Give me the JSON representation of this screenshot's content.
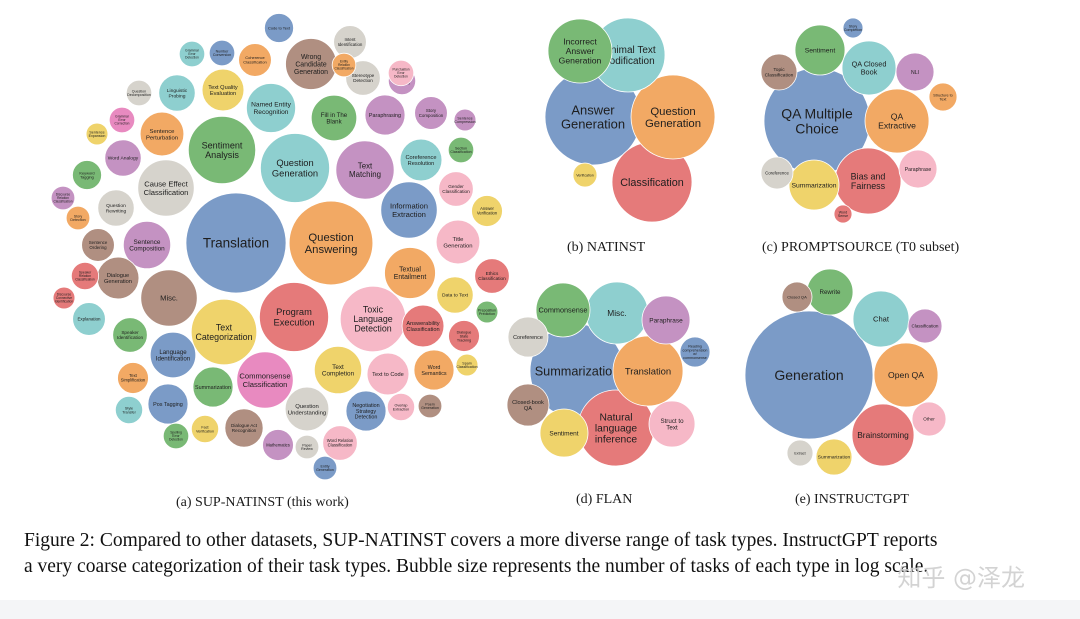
{
  "chart_data": [
    {
      "type": "bubble",
      "caption": "(a) SUP-NATINST (this work)",
      "bubbles": [
        {
          "label": "Translation",
          "size": 110,
          "color": "#7b9bc7"
        },
        {
          "label": "Question Answering",
          "size": 92,
          "color": "#f2a964"
        },
        {
          "label": "Program Execution",
          "size": 76,
          "color": "#e57a7a"
        },
        {
          "label": "Question Generation",
          "size": 76,
          "color": "#8ecfcf"
        },
        {
          "label": "Sentiment Analysis",
          "size": 74,
          "color": "#79b975"
        },
        {
          "label": "Text Categorization",
          "size": 72,
          "color": "#efd36b"
        },
        {
          "label": "Toxic Language Detection",
          "size": 72,
          "color": "#f6b8c7"
        },
        {
          "label": "Misc.",
          "size": 62,
          "color": "#b08f81"
        },
        {
          "label": "Cause Effect Classification",
          "size": 62,
          "color": "#d6d3cc"
        },
        {
          "label": "Commonsense Classification",
          "size": 62,
          "color": "#e88ac0"
        },
        {
          "label": "Text Matching",
          "size": 64,
          "color": "#c492c2"
        },
        {
          "label": "Information Extraction",
          "size": 62,
          "color": "#7b9bc7"
        },
        {
          "label": "Textual Entailment",
          "size": 56,
          "color": "#f2a964"
        },
        {
          "label": "Wrong Candidate Generation",
          "size": 56,
          "color": "#b08f81"
        },
        {
          "label": "Named Entity Recognition",
          "size": 54,
          "color": "#8ecfcf"
        },
        {
          "label": "Sentence Composition",
          "size": 52,
          "color": "#c492c2"
        },
        {
          "label": "Text Completion",
          "size": 52,
          "color": "#efd36b"
        },
        {
          "label": "Language Identification",
          "size": 50,
          "color": "#7b9bc7"
        },
        {
          "label": "Fill in The Blank",
          "size": 50,
          "color": "#79b975"
        },
        {
          "label": "Text Quality Evaluation",
          "size": 46,
          "color": "#efd36b"
        },
        {
          "label": "Dialogue Generation",
          "size": 46,
          "color": "#b08f81"
        },
        {
          "label": "Coreference Resolution",
          "size": 46,
          "color": "#8ecfcf"
        },
        {
          "label": "Sentence Perturbation",
          "size": 48,
          "color": "#f2a964"
        },
        {
          "label": "Question Understanding",
          "size": 48,
          "color": "#d6d3cc"
        },
        {
          "label": "Summarization",
          "size": 44,
          "color": "#79b975"
        },
        {
          "label": "Paraphrasing",
          "size": 44,
          "color": "#c492c2"
        },
        {
          "label": "Title Generation",
          "size": 48,
          "color": "#f6b8c7"
        },
        {
          "label": "Text to Code",
          "size": 46,
          "color": "#f6b8c7"
        },
        {
          "label": "Word Semantics",
          "size": 44,
          "color": "#f2a964"
        },
        {
          "label": "Answerability Classification",
          "size": 46,
          "color": "#e57a7a"
        },
        {
          "label": "Pos Tagging",
          "size": 44,
          "color": "#7b9bc7"
        },
        {
          "label": "Dialogue Act Recognition",
          "size": 42,
          "color": "#b08f81"
        },
        {
          "label": "Negotiation Strategy Detection",
          "size": 44,
          "color": "#7b9bc7"
        },
        {
          "label": "Linguistic Probing",
          "size": 40,
          "color": "#8ecfcf"
        },
        {
          "label": "Question Rewriting",
          "size": 40,
          "color": "#d6d3cc"
        },
        {
          "label": "Word Analogy",
          "size": 40,
          "color": "#c492c2"
        },
        {
          "label": "Stereotype Detection",
          "size": 38,
          "color": "#d6d3cc"
        },
        {
          "label": "Speaker Identification",
          "size": 38,
          "color": "#79b975"
        },
        {
          "label": "Data to Text",
          "size": 40,
          "color": "#efd36b"
        },
        {
          "label": "Word Relation Classification",
          "size": 38,
          "color": "#f6b8c7"
        },
        {
          "label": "Ethics Classification",
          "size": 38,
          "color": "#e57a7a"
        },
        {
          "label": "Dialogue State Tracking",
          "size": 34,
          "color": "#e57a7a"
        },
        {
          "label": "Story Composition",
          "size": 36,
          "color": "#c492c2"
        },
        {
          "label": "Gender Classification",
          "size": 38,
          "color": "#f6b8c7"
        },
        {
          "label": "Coherence Classification",
          "size": 36,
          "color": "#f2a964"
        },
        {
          "label": "Intent Identification",
          "size": 36,
          "color": "#d6d3cc"
        },
        {
          "label": "Explanation",
          "size": 36,
          "color": "#8ecfcf"
        },
        {
          "label": "Sentence Ordering",
          "size": 36,
          "color": "#b08f81"
        },
        {
          "label": "Answer Verification",
          "size": 34,
          "color": "#efd36b"
        },
        {
          "label": "Mathematics",
          "size": 34,
          "color": "#c492c2"
        },
        {
          "label": "Text Simplification",
          "size": 34,
          "color": "#f2a964"
        },
        {
          "label": "Code to Text",
          "size": 32,
          "color": "#7b9bc7"
        },
        {
          "label": "Keyword Tagging",
          "size": 32,
          "color": "#79b975"
        },
        {
          "label": "Stance Detection",
          "size": 30,
          "color": "#c492c2"
        },
        {
          "label": "Fact Verification",
          "size": 30,
          "color": "#efd36b"
        },
        {
          "label": "Overlap Extraction",
          "size": 30,
          "color": "#f6b8c7"
        },
        {
          "label": "Speaker Relation Classification",
          "size": 30,
          "color": "#e57a7a"
        },
        {
          "label": "Style Transfer",
          "size": 30,
          "color": "#8ecfcf"
        },
        {
          "label": "Grammar Error Correction",
          "size": 28,
          "color": "#e88ac0"
        },
        {
          "label": "Number Conversion",
          "size": 28,
          "color": "#7b9bc7"
        },
        {
          "label": "Grammar Error Detection",
          "size": 28,
          "color": "#8ecfcf"
        },
        {
          "label": "Question Decomposition",
          "size": 28,
          "color": "#d6d3cc"
        },
        {
          "label": "Punctuation Error Detection",
          "size": 28,
          "color": "#f6b8c7"
        },
        {
          "label": "Section Classification",
          "size": 28,
          "color": "#79b975"
        },
        {
          "label": "Spelling Error Detection",
          "size": 28,
          "color": "#79b975"
        },
        {
          "label": "Entity Generation",
          "size": 26,
          "color": "#7b9bc7"
        },
        {
          "label": "Paper Review",
          "size": 26,
          "color": "#d6d3cc"
        },
        {
          "label": "Poem Generation",
          "size": 26,
          "color": "#b08f81"
        },
        {
          "label": "Discourse Relation Classification",
          "size": 26,
          "color": "#c492c2"
        },
        {
          "label": "Story Detection",
          "size": 26,
          "color": "#f2a964"
        },
        {
          "label": "Entity Relation Classification",
          "size": 26,
          "color": "#f2a964"
        },
        {
          "label": "Sentence Expansion",
          "size": 24,
          "color": "#efd36b"
        },
        {
          "label": "Discourse Connective Identification",
          "size": 24,
          "color": "#e57a7a"
        },
        {
          "label": "Sentence Compression",
          "size": 24,
          "color": "#c492c2"
        },
        {
          "label": "Preposition Prediction",
          "size": 24,
          "color": "#79b975"
        },
        {
          "label": "Spam Classification",
          "size": 24,
          "color": "#efd36b"
        }
      ]
    },
    {
      "type": "bubble",
      "caption": "(b) NATINST",
      "bubbles": [
        {
          "label": "Answer Generation",
          "size": 96,
          "color": "#7b9bc7"
        },
        {
          "label": "Classification",
          "size": 80,
          "color": "#e57a7a"
        },
        {
          "label": "Question Generation",
          "size": 84,
          "color": "#f2a964"
        },
        {
          "label": "Minimal Text Modification",
          "size": 74,
          "color": "#8ecfcf"
        },
        {
          "label": "Incorrect Answer Generation",
          "size": 64,
          "color": "#79b975"
        },
        {
          "label": "Verification",
          "size": 24,
          "color": "#efd36b"
        }
      ]
    },
    {
      "type": "bubble",
      "caption": "(c) PROMPTSOURCE (T0 subset)",
      "bubbles": [
        {
          "label": "QA Multiple Choice",
          "size": 106,
          "color": "#7b9bc7"
        },
        {
          "label": "Bias and Fairness",
          "size": 66,
          "color": "#e57a7a"
        },
        {
          "label": "QA Extractive",
          "size": 64,
          "color": "#f2a964"
        },
        {
          "label": "Summarization",
          "size": 50,
          "color": "#efd36b"
        },
        {
          "label": "QA Closed Book",
          "size": 54,
          "color": "#8ecfcf"
        },
        {
          "label": "Sentiment",
          "size": 50,
          "color": "#79b975"
        },
        {
          "label": "Paraphrase",
          "size": 38,
          "color": "#f6b8c7"
        },
        {
          "label": "Topic Classification",
          "size": 36,
          "color": "#b08f81"
        },
        {
          "label": "NLI",
          "size": 38,
          "color": "#c492c2"
        },
        {
          "label": "Coreference",
          "size": 32,
          "color": "#d6d3cc"
        },
        {
          "label": "Structure to Text",
          "size": 28,
          "color": "#f2a964"
        },
        {
          "label": "Story Completion",
          "size": 20,
          "color": "#7b9bc7"
        },
        {
          "label": "Word Sense",
          "size": 18,
          "color": "#e57a7a"
        }
      ]
    },
    {
      "type": "bubble",
      "caption": "(d) FLAN",
      "bubbles": [
        {
          "label": "Summarization",
          "size": 94,
          "color": "#7b9bc7"
        },
        {
          "label": "Natural language inference",
          "size": 76,
          "color": "#e57a7a"
        },
        {
          "label": "Translation",
          "size": 70,
          "color": "#f2a964"
        },
        {
          "label": "Misc.",
          "size": 62,
          "color": "#8ecfcf"
        },
        {
          "label": "Commonsense",
          "size": 54,
          "color": "#79b975"
        },
        {
          "label": "Paraphrase",
          "size": 48,
          "color": "#c492c2"
        },
        {
          "label": "Sentiment",
          "size": 48,
          "color": "#efd36b"
        },
        {
          "label": "Struct to Text",
          "size": 46,
          "color": "#f6b8c7"
        },
        {
          "label": "Closed-book QA",
          "size": 42,
          "color": "#b08f81"
        },
        {
          "label": "Coreference",
          "size": 40,
          "color": "#d6d3cc"
        },
        {
          "label": "Reading comprehension w/ commonsense",
          "size": 30,
          "color": "#7b9bc7"
        }
      ]
    },
    {
      "type": "bubble",
      "caption": "(e) INSTRUCTGPT",
      "bubbles": [
        {
          "label": "Generation",
          "size": 128,
          "color": "#7b9bc7"
        },
        {
          "label": "Brainstorming",
          "size": 62,
          "color": "#e57a7a"
        },
        {
          "label": "Open QA",
          "size": 64,
          "color": "#f2a964"
        },
        {
          "label": "Chat",
          "size": 56,
          "color": "#8ecfcf"
        },
        {
          "label": "Rewrite",
          "size": 46,
          "color": "#79b975"
        },
        {
          "label": "Classification",
          "size": 34,
          "color": "#c492c2"
        },
        {
          "label": "Other",
          "size": 34,
          "color": "#f6b8c7"
        },
        {
          "label": "Summarization",
          "size": 36,
          "color": "#efd36b"
        },
        {
          "label": "Closed QA",
          "size": 30,
          "color": "#b08f81"
        },
        {
          "label": "Extract",
          "size": 26,
          "color": "#d6d3cc"
        }
      ]
    }
  ],
  "figure_caption": {
    "line1": "Figure 2: Compared to other datasets, SUP-NATINST covers a more diverse range of task types. InstructGPT reports",
    "line2": "a very coarse categorization of their task types. Bubble size represents the number of tasks of each type in log scale."
  },
  "watermark": "知乎 @泽龙"
}
